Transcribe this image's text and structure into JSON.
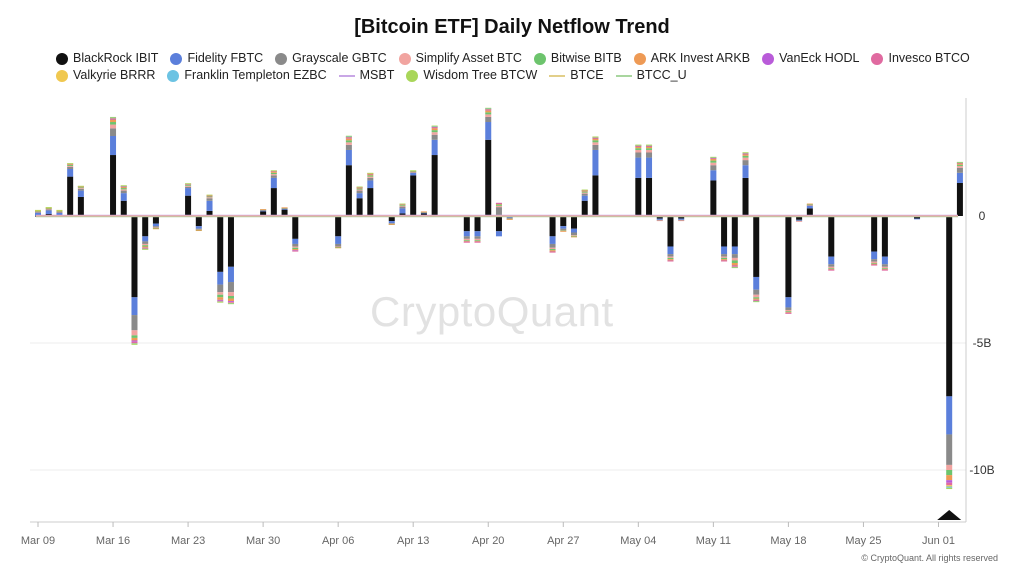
{
  "chart_data": {
    "type": "bar",
    "stacked": true,
    "title": "[Bitcoin ETF] Daily Netflow Trend",
    "unit": "USD",
    "y_ticks": [
      {
        "value": 0,
        "label": "0"
      },
      {
        "value": -5000000000,
        "label": "-5B"
      },
      {
        "value": -10000000000,
        "label": "-10B"
      }
    ],
    "x_ticks": [
      {
        "date": "2025-03-09",
        "label": "Mar 09"
      },
      {
        "date": "2025-03-16",
        "label": "Mar 16"
      },
      {
        "date": "2025-03-23",
        "label": "Mar 23"
      },
      {
        "date": "2025-03-30",
        "label": "Mar 30"
      },
      {
        "date": "2025-04-06",
        "label": "Apr 06"
      },
      {
        "date": "2025-04-13",
        "label": "Apr 13"
      },
      {
        "date": "2025-04-20",
        "label": "Apr 20"
      },
      {
        "date": "2025-04-27",
        "label": "Apr 27"
      },
      {
        "date": "2025-05-04",
        "label": "May 04"
      },
      {
        "date": "2025-05-11",
        "label": "May 11"
      },
      {
        "date": "2025-05-18",
        "label": "May 18"
      },
      {
        "date": "2025-05-25",
        "label": "May 25"
      },
      {
        "date": "2025-06-01",
        "label": "Jun 01"
      }
    ],
    "legend_rows": [
      [
        {
          "name": "BlackRock IBIT",
          "color": "#111111",
          "kind": "dot"
        },
        {
          "name": "Fidelity FBTC",
          "color": "#5b7fdb",
          "kind": "dot"
        },
        {
          "name": "Grayscale GBTC",
          "color": "#8a8a8a",
          "kind": "dot"
        },
        {
          "name": "Simplify Asset BTC",
          "color": "#f1a4a0",
          "kind": "dot"
        },
        {
          "name": "Bitwise BITB",
          "color": "#6dc46d",
          "kind": "dot"
        },
        {
          "name": "ARK Invest ARKB",
          "color": "#ee9a55",
          "kind": "dot"
        },
        {
          "name": "VanEck HODL",
          "color": "#b95bd9",
          "kind": "dot"
        },
        {
          "name": "Invesco BTCO",
          "color": "#e06aa0",
          "kind": "dot"
        }
      ],
      [
        {
          "name": "Valkyrie BRRR",
          "color": "#f0c850",
          "kind": "dot"
        },
        {
          "name": "Franklin Templeton EZBC",
          "color": "#6cc3e3",
          "kind": "dot"
        },
        {
          "name": "MSBT",
          "color": "#c9a7e6",
          "kind": "line"
        },
        {
          "name": "Wisdom Tree BTCW",
          "color": "#a9d65a",
          "kind": "dot"
        },
        {
          "name": "BTCE",
          "color": "#e2cf8a",
          "kind": "line"
        },
        {
          "name": "BTCC_U",
          "color": "#a9d69f",
          "kind": "line"
        }
      ]
    ],
    "series_order": [
      "BlackRock IBIT",
      "Fidelity FBTC",
      "Grayscale GBTC",
      "Simplify Asset BTC",
      "Bitwise BITB",
      "ARK Invest ARKB",
      "VanEck HODL",
      "Invesco BTCO",
      "Valkyrie BRRR",
      "Franklin Templeton EZBC",
      "Wisdom Tree BTCW"
    ],
    "bars": [
      {
        "date": "2025-03-09",
        "values": [
          0.01,
          0.12,
          0.03,
          0.02,
          0.02,
          0.02,
          0,
          0,
          0.01,
          0,
          0.01
        ]
      },
      {
        "date": "2025-03-10",
        "values": [
          0.08,
          0.14,
          0.04,
          0.03,
          0.02,
          0.02,
          0,
          0,
          0.01,
          0,
          0.01
        ]
      },
      {
        "date": "2025-03-11",
        "values": [
          0.02,
          0.1,
          0.04,
          0.02,
          0.02,
          0.02,
          0,
          0,
          0.01,
          0,
          0.01
        ]
      },
      {
        "date": "2025-03-12",
        "values": [
          1.55,
          0.3,
          0.08,
          0.04,
          0.04,
          0.04,
          0.01,
          0,
          0.01,
          0,
          0.01
        ]
      },
      {
        "date": "2025-03-13",
        "values": [
          0.75,
          0.25,
          0.07,
          0.03,
          0.03,
          0.03,
          0.01,
          0,
          0.01,
          0,
          0.01
        ]
      },
      {
        "date": "2025-03-16",
        "values": [
          2.4,
          0.75,
          0.3,
          0.15,
          0.1,
          0.1,
          0.03,
          0.02,
          0.02,
          0.01,
          0.02
        ]
      },
      {
        "date": "2025-03-17",
        "values": [
          0.6,
          0.3,
          0.1,
          0.05,
          0.05,
          0.05,
          0.02,
          0.01,
          0.01,
          0.01,
          0.01
        ]
      },
      {
        "date": "2025-03-18",
        "values": [
          -3.2,
          -0.7,
          -0.6,
          -0.2,
          -0.1,
          -0.1,
          -0.05,
          -0.05,
          -0.02,
          -0.02,
          -0.02
        ]
      },
      {
        "date": "2025-03-19",
        "values": [
          -0.8,
          -0.2,
          -0.1,
          -0.05,
          -0.05,
          -0.05,
          -0.02,
          -0.01,
          -0.01,
          -0.01,
          -0.01
        ]
      },
      {
        "date": "2025-03-20",
        "values": [
          -0.3,
          -0.1,
          -0.05,
          -0.02,
          -0.02,
          -0.02,
          0,
          0,
          0,
          0,
          0
        ]
      },
      {
        "date": "2025-03-23",
        "values": [
          0.8,
          0.3,
          0.05,
          0.04,
          0.04,
          0.04,
          0.01,
          0,
          0,
          0,
          0.01
        ]
      },
      {
        "date": "2025-03-24",
        "values": [
          -0.4,
          -0.1,
          -0.02,
          -0.02,
          -0.02,
          -0.02,
          0,
          0,
          0,
          0,
          0
        ]
      },
      {
        "date": "2025-03-25",
        "values": [
          0.2,
          0.4,
          0.1,
          0.04,
          0.03,
          0.03,
          0.01,
          0.01,
          0.01,
          0,
          0.01
        ]
      },
      {
        "date": "2025-03-26",
        "values": [
          -2.2,
          -0.5,
          -0.3,
          -0.1,
          -0.1,
          -0.1,
          -0.03,
          -0.03,
          -0.01,
          -0.01,
          -0.01
        ]
      },
      {
        "date": "2025-03-27",
        "values": [
          -2.0,
          -0.6,
          -0.4,
          -0.15,
          -0.1,
          -0.1,
          -0.04,
          -0.03,
          -0.01,
          -0.01,
          -0.01
        ]
      },
      {
        "date": "2025-03-30",
        "values": [
          0.18,
          0.04,
          0.02,
          0.01,
          0.01,
          0.01,
          0,
          0,
          0,
          0,
          0
        ]
      },
      {
        "date": "2025-03-31",
        "values": [
          1.1,
          0.4,
          0.1,
          0.05,
          0.05,
          0.05,
          0.02,
          0.01,
          0.01,
          0,
          0.01
        ]
      },
      {
        "date": "2025-04-01",
        "values": [
          0.25,
          0.04,
          0.02,
          0.01,
          0.01,
          0.01,
          0,
          0,
          0,
          0,
          0
        ]
      },
      {
        "date": "2025-04-02",
        "values": [
          -0.9,
          -0.2,
          -0.1,
          -0.05,
          -0.05,
          -0.05,
          -0.02,
          -0.01,
          0,
          0,
          0
        ]
      },
      {
        "date": "2025-04-06",
        "values": [
          -0.8,
          -0.3,
          -0.1,
          -0.02,
          -0.02,
          -0.02,
          0,
          0,
          0,
          0,
          0
        ]
      },
      {
        "date": "2025-04-07",
        "values": [
          2.0,
          0.6,
          0.2,
          0.1,
          0.08,
          0.08,
          0.03,
          0.02,
          0.02,
          0.01,
          0.02
        ]
      },
      {
        "date": "2025-04-08",
        "values": [
          0.7,
          0.2,
          0.1,
          0.04,
          0.04,
          0.04,
          0.01,
          0.01,
          0.01,
          0,
          0.01
        ]
      },
      {
        "date": "2025-04-09",
        "values": [
          1.1,
          0.3,
          0.1,
          0.05,
          0.05,
          0.05,
          0.02,
          0.01,
          0.01,
          0,
          0.01
        ]
      },
      {
        "date": "2025-04-11",
        "values": [
          -0.2,
          -0.08,
          -0.02,
          -0.01,
          -0.01,
          -0.01,
          0,
          0,
          0,
          0,
          0
        ]
      },
      {
        "date": "2025-04-12",
        "values": [
          0.1,
          0.2,
          0.07,
          0.03,
          0.03,
          0.03,
          0.01,
          0,
          0.01,
          0,
          0.01
        ]
      },
      {
        "date": "2025-04-13",
        "values": [
          1.6,
          0.1,
          0.03,
          0.02,
          0.02,
          0.02,
          0,
          0,
          0,
          0,
          0.01
        ]
      },
      {
        "date": "2025-04-14",
        "values": [
          0.1,
          0.03,
          0.02,
          0.01,
          0.01,
          0.01,
          0,
          0,
          0,
          0,
          0
        ]
      },
      {
        "date": "2025-04-15",
        "values": [
          2.4,
          0.6,
          0.2,
          0.1,
          0.08,
          0.08,
          0.03,
          0.02,
          0.02,
          0.01,
          0.02
        ]
      },
      {
        "date": "2025-04-18",
        "values": [
          -0.6,
          -0.2,
          -0.1,
          -0.05,
          -0.03,
          -0.03,
          -0.01,
          -0.01,
          0,
          0,
          0
        ]
      },
      {
        "date": "2025-04-19",
        "values": [
          -0.6,
          -0.2,
          -0.1,
          -0.05,
          -0.03,
          -0.03,
          -0.01,
          -0.01,
          0,
          0,
          0
        ]
      },
      {
        "date": "2025-04-20",
        "values": [
          3.0,
          0.7,
          0.2,
          0.1,
          0.08,
          0.08,
          0.03,
          0.02,
          0.02,
          0.01,
          0.02
        ]
      },
      {
        "date": "2025-04-21",
        "values": [
          -0.6,
          -0.2,
          0.35,
          0.05,
          0.05,
          0.05,
          0.01,
          0.01,
          0,
          0,
          0
        ]
      },
      {
        "date": "2025-04-22",
        "values": [
          -0.05,
          -0.03,
          -0.02,
          -0.01,
          -0.01,
          -0.01,
          0,
          0,
          0,
          0,
          0
        ]
      },
      {
        "date": "2025-04-26",
        "values": [
          -0.8,
          -0.3,
          -0.15,
          -0.05,
          -0.05,
          -0.05,
          -0.01,
          -0.01,
          0,
          0,
          0
        ]
      },
      {
        "date": "2025-04-27",
        "values": [
          -0.4,
          -0.1,
          -0.05,
          -0.02,
          -0.02,
          -0.02,
          0,
          0,
          0,
          0,
          0
        ]
      },
      {
        "date": "2025-04-28",
        "values": [
          -0.5,
          -0.15,
          -0.1,
          -0.03,
          -0.03,
          -0.03,
          0,
          0,
          0,
          0,
          0
        ]
      },
      {
        "date": "2025-04-29",
        "values": [
          0.6,
          0.2,
          0.08,
          0.04,
          0.04,
          0.04,
          0.01,
          0.01,
          0.01,
          0,
          0.01
        ]
      },
      {
        "date": "2025-04-30",
        "values": [
          1.6,
          1.0,
          0.2,
          0.1,
          0.08,
          0.08,
          0.02,
          0.02,
          0.01,
          0.01,
          0.01
        ]
      },
      {
        "date": "2025-05-04",
        "values": [
          1.5,
          0.8,
          0.2,
          0.1,
          0.07,
          0.07,
          0.02,
          0.02,
          0.01,
          0.01,
          0.01
        ]
      },
      {
        "date": "2025-05-05",
        "values": [
          1.5,
          0.8,
          0.2,
          0.1,
          0.07,
          0.07,
          0.02,
          0.02,
          0.01,
          0.01,
          0.01
        ]
      },
      {
        "date": "2025-05-06",
        "values": [
          -0.1,
          -0.05,
          -0.02,
          -0.01,
          0,
          0,
          0,
          0,
          0,
          0,
          0
        ]
      },
      {
        "date": "2025-05-07",
        "values": [
          -1.2,
          -0.3,
          -0.1,
          -0.05,
          -0.05,
          -0.05,
          -0.01,
          -0.01,
          0,
          0,
          0
        ]
      },
      {
        "date": "2025-05-08",
        "values": [
          -0.1,
          -0.05,
          -0.02,
          -0.01,
          0,
          0,
          0,
          0,
          0,
          0,
          0
        ]
      },
      {
        "date": "2025-05-11",
        "values": [
          1.4,
          0.4,
          0.2,
          0.1,
          0.08,
          0.08,
          0.02,
          0.02,
          0.01,
          0.01,
          0.01
        ]
      },
      {
        "date": "2025-05-12",
        "values": [
          -1.2,
          -0.3,
          -0.1,
          -0.05,
          -0.05,
          -0.05,
          -0.01,
          -0.01,
          0,
          0,
          0
        ]
      },
      {
        "date": "2025-05-13",
        "values": [
          -1.2,
          -0.3,
          -0.15,
          -0.1,
          -0.1,
          -0.1,
          -0.03,
          -0.02,
          -0.01,
          -0.01,
          -0.01
        ]
      },
      {
        "date": "2025-05-14",
        "values": [
          1.5,
          0.5,
          0.2,
          0.1,
          0.07,
          0.07,
          0.02,
          0.02,
          0.01,
          0.01,
          0.01
        ]
      },
      {
        "date": "2025-05-15",
        "values": [
          -2.4,
          -0.5,
          -0.2,
          -0.1,
          -0.05,
          -0.05,
          -0.02,
          -0.02,
          -0.01,
          -0.01,
          -0.01
        ]
      },
      {
        "date": "2025-05-18",
        "values": [
          -3.2,
          -0.4,
          -0.1,
          -0.05,
          -0.03,
          -0.03,
          -0.01,
          -0.01,
          0,
          0,
          0
        ]
      },
      {
        "date": "2025-05-19",
        "values": [
          -0.15,
          -0.03,
          -0.02,
          -0.01,
          0,
          0,
          0,
          0,
          0,
          0,
          0
        ]
      },
      {
        "date": "2025-05-20",
        "values": [
          0.3,
          0.1,
          0.03,
          0.02,
          0.02,
          0.02,
          0,
          0,
          0,
          0,
          0
        ]
      },
      {
        "date": "2025-05-22",
        "values": [
          -1.6,
          -0.3,
          -0.1,
          -0.05,
          -0.03,
          -0.03,
          -0.01,
          -0.01,
          0,
          0,
          0
        ]
      },
      {
        "date": "2025-05-26",
        "values": [
          -1.4,
          -0.3,
          -0.1,
          -0.05,
          -0.03,
          -0.03,
          -0.01,
          -0.01,
          0,
          0,
          0
        ]
      },
      {
        "date": "2025-05-27",
        "values": [
          -1.6,
          -0.3,
          -0.1,
          -0.05,
          -0.03,
          -0.03,
          -0.01,
          -0.01,
          0,
          0,
          0
        ]
      },
      {
        "date": "2025-05-30",
        "values": [
          -0.1,
          -0.03,
          0,
          0,
          0,
          0,
          0,
          0,
          0,
          0,
          0
        ]
      },
      {
        "date": "2025-06-02",
        "values": [
          -7.1,
          -1.5,
          -1.2,
          -0.2,
          -0.2,
          -0.2,
          -0.1,
          -0.1,
          -0.05,
          -0.05,
          -0.05
        ]
      },
      {
        "date": "2025-06-03",
        "values": [
          1.3,
          0.4,
          0.2,
          0.07,
          0.05,
          0.05,
          0.02,
          0.01,
          0.01,
          0.01,
          0.01
        ]
      }
    ],
    "values_unit_note": "values in billions (B)"
  },
  "watermark": "CryptoQuant",
  "copyright": "© CryptoQuant. All rights reserved"
}
